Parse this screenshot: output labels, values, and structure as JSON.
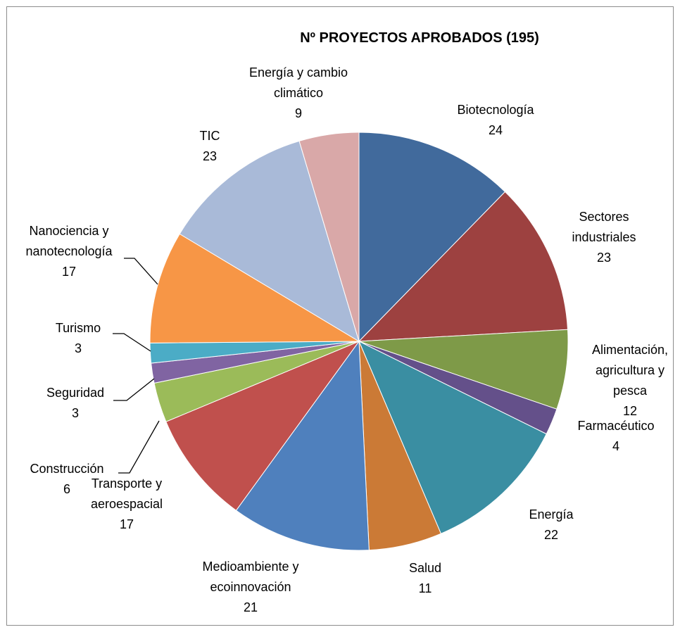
{
  "chart_data": {
    "type": "pie",
    "title": "Nº PROYECTOS APROBADOS (195)",
    "slices": [
      {
        "label": [
          "Biotecnología"
        ],
        "value": 24,
        "color": "#416A9C"
      },
      {
        "label": [
          "Sectores",
          "industriales"
        ],
        "value": 23,
        "color": "#9D4140"
      },
      {
        "label": [
          "Alimentación,",
          "agricultura y",
          "pesca"
        ],
        "value": 12,
        "color": "#7E9A48"
      },
      {
        "label": [
          "Farmacéutico"
        ],
        "value": 4,
        "color": "#64508A"
      },
      {
        "label": [
          "Energía"
        ],
        "value": 22,
        "color": "#3A8EA2"
      },
      {
        "label": [
          "Salud"
        ],
        "value": 11,
        "color": "#CB7A36"
      },
      {
        "label": [
          "Medioambiente y",
          "ecoinnovación"
        ],
        "value": 21,
        "color": "#4F80BD"
      },
      {
        "label": [
          "Transporte y",
          "aeroespacial"
        ],
        "value": 17,
        "color": "#C0504D"
      },
      {
        "label": [
          "Construcción"
        ],
        "value": 6,
        "color": "#9BBB59"
      },
      {
        "label": [
          "Seguridad"
        ],
        "value": 3,
        "color": "#8064A2"
      },
      {
        "label": [
          "Turismo"
        ],
        "value": 3,
        "color": "#4BACC6"
      },
      {
        "label": [
          "Nanociencia y",
          "nanotecnología"
        ],
        "value": 17,
        "color": "#F79646"
      },
      {
        "label": [
          "TIC"
        ],
        "value": 23,
        "color": "#A9BAD8"
      },
      {
        "label": [
          "Energía y cambio",
          "climático"
        ],
        "value": 9,
        "color": "#D9A8A8"
      }
    ],
    "legend": "none"
  }
}
